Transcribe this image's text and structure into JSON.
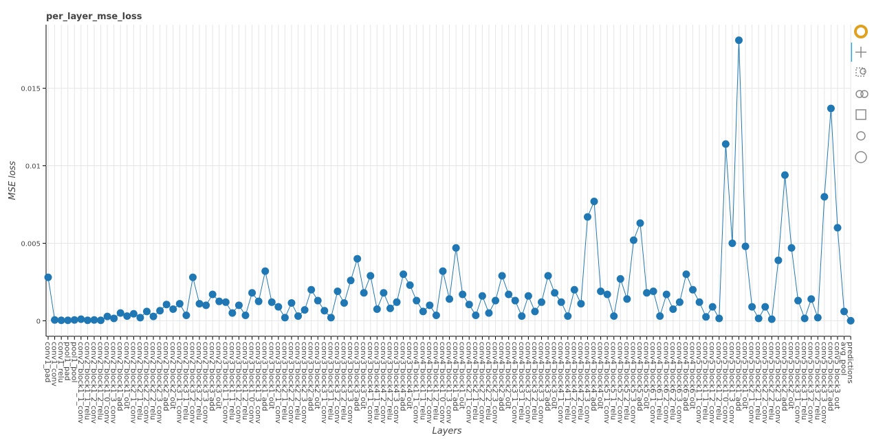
{
  "chart_data": {
    "type": "line",
    "title": "per_layer_mse_loss",
    "x_label": "Layers",
    "y_label": "MSE loss",
    "categories": [
      "conv1_pad",
      "conv1_conv",
      "conv1_relu",
      "pool1_pad",
      "pool1_pool",
      "conv2_block1_1_conv",
      "conv2_block1_1_relu",
      "conv2_block1_2_conv",
      "conv2_block1_2_relu",
      "conv2_block1_0_conv",
      "conv2_block1_3_conv",
      "conv2_block1_add",
      "conv2_block1_out",
      "conv2_block2_1_conv",
      "conv2_block2_1_relu",
      "conv2_block2_2_conv",
      "conv2_block2_2_relu",
      "conv2_block2_3_conv",
      "conv2_block2_add",
      "conv2_block2_out",
      "conv2_block3_1_conv",
      "conv2_block3_1_relu",
      "conv2_block3_2_conv",
      "conv2_block3_2_relu",
      "conv2_block3_3_conv",
      "conv2_block3_add",
      "conv2_block3_out",
      "conv3_block1_1_conv",
      "conv3_block1_1_relu",
      "conv3_block1_2_conv",
      "conv3_block1_2_relu",
      "conv3_block1_0_conv",
      "conv3_block1_3_conv",
      "conv3_block1_add",
      "conv3_block1_out",
      "conv3_block2_1_conv",
      "conv3_block2_1_relu",
      "conv3_block2_2_conv",
      "conv3_block2_2_relu",
      "conv3_block2_3_conv",
      "conv3_block2_add",
      "conv3_block2_out",
      "conv3_block3_1_conv",
      "conv3_block3_1_relu",
      "conv3_block3_2_conv",
      "conv3_block3_2_relu",
      "conv3_block3_3_conv",
      "conv3_block3_add",
      "conv3_block3_out",
      "conv3_block4_1_conv",
      "conv3_block4_1_relu",
      "conv3_block4_2_conv",
      "conv3_block4_2_relu",
      "conv3_block4_3_conv",
      "conv3_block4_add",
      "conv3_block4_out",
      "conv4_block1_1_conv",
      "conv4_block1_1_relu",
      "conv4_block1_2_conv",
      "conv4_block1_2_relu",
      "conv4_block1_0_conv",
      "conv4_block1_3_conv",
      "conv4_block1_add",
      "conv4_block1_out",
      "conv4_block2_1_conv",
      "conv4_block2_1_relu",
      "conv4_block2_2_conv",
      "conv4_block2_2_relu",
      "conv4_block2_3_conv",
      "conv4_block2_add",
      "conv4_block2_out",
      "conv4_block3_1_conv",
      "conv4_block3_1_relu",
      "conv4_block3_2_conv",
      "conv4_block3_2_relu",
      "conv4_block3_3_conv",
      "conv4_block3_add",
      "conv4_block3_out",
      "conv4_block4_1_conv",
      "conv4_block4_1_relu",
      "conv4_block4_2_conv",
      "conv4_block4_2_relu",
      "conv4_block4_3_conv",
      "conv4_block4_add",
      "conv4_block4_out",
      "conv4_block5_1_conv",
      "conv4_block5_1_relu",
      "conv4_block5_2_conv",
      "conv4_block5_2_relu",
      "conv4_block5_3_conv",
      "conv4_block5_add",
      "conv4_block5_out",
      "conv4_block6_1_conv",
      "conv4_block6_1_relu",
      "conv4_block6_2_conv",
      "conv4_block6_2_relu",
      "conv4_block6_3_conv",
      "conv4_block6_add",
      "conv4_block6_out",
      "conv5_block1_1_conv",
      "conv5_block1_1_relu",
      "conv5_block1_2_conv",
      "conv5_block1_2_relu",
      "conv5_block1_0_conv",
      "conv5_block1_3_conv",
      "conv5_block1_add",
      "conv5_block1_out",
      "conv5_block2_1_conv",
      "conv5_block2_1_relu",
      "conv5_block2_2_conv",
      "conv5_block2_2_relu",
      "conv5_block2_3_conv",
      "conv5_block2_add",
      "conv5_block2_out",
      "conv5_block3_1_conv",
      "conv5_block3_1_relu",
      "conv5_block3_2_conv",
      "conv5_block3_2_relu",
      "conv5_block3_3_conv",
      "conv5_block3_add",
      "conv5_block3_out",
      "avg_pool",
      "predictions"
    ],
    "values": [
      0.0028,
      5e-05,
      3e-05,
      3e-05,
      5e-05,
      0.0001,
      3e-05,
      5e-05,
      3e-05,
      0.00028,
      0.00015,
      0.0005,
      0.0003,
      0.00045,
      0.0002,
      0.0006,
      0.00028,
      0.00065,
      0.00105,
      0.00075,
      0.0011,
      0.00035,
      0.0028,
      0.0011,
      0.001,
      0.0017,
      0.00125,
      0.0012,
      0.0005,
      0.001,
      0.00035,
      0.0018,
      0.00125,
      0.0032,
      0.0012,
      0.0009,
      0.0002,
      0.00115,
      0.0003,
      0.0007,
      0.002,
      0.0013,
      0.00065,
      0.0002,
      0.0019,
      0.00115,
      0.0026,
      0.004,
      0.0018,
      0.0029,
      0.00075,
      0.0018,
      0.0008,
      0.0012,
      0.003,
      0.0023,
      0.0013,
      0.0006,
      0.001,
      0.00035,
      0.0032,
      0.0014,
      0.0047,
      0.0017,
      0.00105,
      0.00035,
      0.0016,
      0.0005,
      0.0013,
      0.0029,
      0.0017,
      0.0013,
      0.0003,
      0.0016,
      0.0006,
      0.0012,
      0.0029,
      0.0018,
      0.0012,
      0.0003,
      0.002,
      0.0011,
      0.0067,
      0.0077,
      0.0019,
      0.0017,
      0.0003,
      0.0027,
      0.0014,
      0.0052,
      0.0063,
      0.0018,
      0.0019,
      0.0003,
      0.0017,
      0.00075,
      0.0012,
      0.003,
      0.002,
      0.0012,
      0.00025,
      0.0009,
      0.00015,
      0.0114,
      0.005,
      0.0181,
      0.0048,
      0.0009,
      0.00015,
      0.0009,
      0.0001,
      0.0039,
      0.0094,
      0.0047,
      0.0013,
      0.00015,
      0.0014,
      0.0002,
      0.008,
      0.0137,
      0.006,
      0.0006,
      0
    ],
    "color": "#1f77b4",
    "ylim": [
      -0.001,
      0.0191
    ],
    "yticks": [
      0,
      0.005,
      0.01,
      0.015
    ],
    "grid": true
  }
}
